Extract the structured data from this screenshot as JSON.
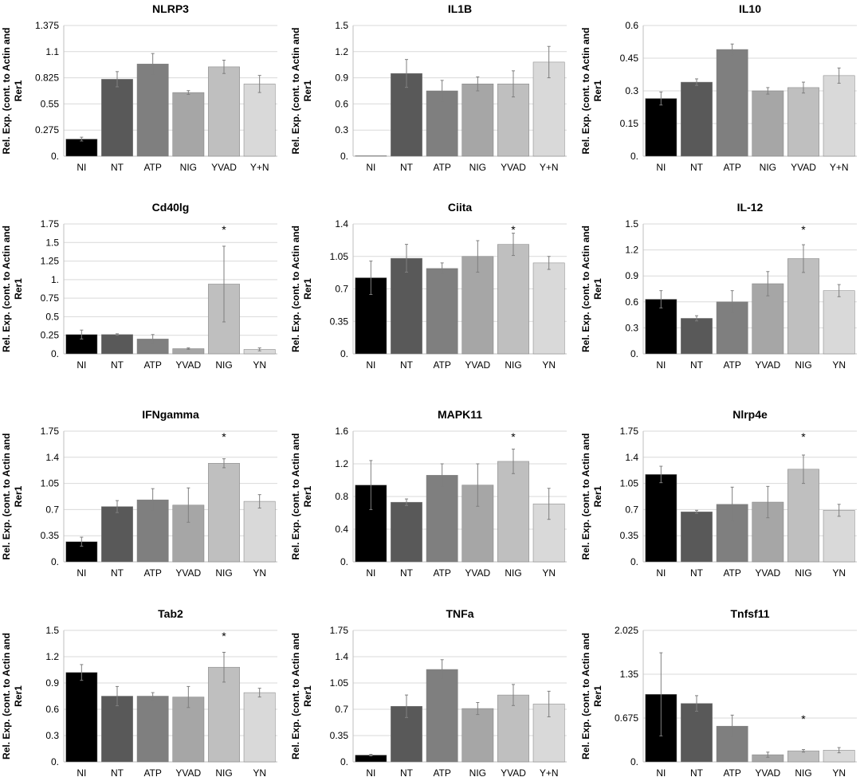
{
  "figure": {
    "chart_data": [
      {
        "type": "bar",
        "title": "NLRP3",
        "ylabel_line1": "Rel. Exp. (cont. to Actin and",
        "ylabel_line2": "Rer1",
        "categories": [
          "NI",
          "NT",
          "ATP",
          "NIG",
          "YVAD",
          "Y+N"
        ],
        "values": [
          0.18,
          0.81,
          0.97,
          0.67,
          0.94,
          0.76
        ],
        "errors": [
          0.02,
          0.08,
          0.11,
          0.02,
          0.07,
          0.09
        ],
        "colors": [
          "#000000",
          "#595959",
          "#7f7f7f",
          "#a6a6a6",
          "#bfbfbf",
          "#d9d9d9"
        ],
        "ylim": [
          0,
          1.375
        ],
        "yticks": [
          "0.",
          "0.275",
          "0.55",
          "0.825",
          "1.1",
          "1.375"
        ],
        "significance": []
      },
      {
        "type": "bar",
        "title": "IL1B",
        "ylabel_line1": "Rel. Exp. (cont. to Actin and",
        "ylabel_line2": "Rer1",
        "categories": [
          "NI",
          "NT",
          "ATP",
          "NIG",
          "YVAD",
          "Y+N"
        ],
        "values": [
          0.005,
          0.95,
          0.75,
          0.83,
          0.83,
          1.08
        ],
        "errors": [
          0,
          0.16,
          0.12,
          0.08,
          0.15,
          0.18
        ],
        "colors": [
          "#000000",
          "#595959",
          "#7f7f7f",
          "#a6a6a6",
          "#bfbfbf",
          "#d9d9d9"
        ],
        "ylim": [
          0,
          1.5
        ],
        "yticks": [
          "0.",
          "0.3",
          "0.6",
          "0.9",
          "1.2",
          "1.5"
        ],
        "significance": []
      },
      {
        "type": "bar",
        "title": "IL10",
        "ylabel_line1": "Rel. Exp. (cont. to Actin and",
        "ylabel_line2": "Rer1",
        "categories": [
          "NI",
          "NT",
          "ATP",
          "NIG",
          "YVAD",
          "Y+N"
        ],
        "values": [
          0.265,
          0.34,
          0.49,
          0.3,
          0.315,
          0.37
        ],
        "errors": [
          0.03,
          0.015,
          0.025,
          0.015,
          0.025,
          0.035
        ],
        "colors": [
          "#000000",
          "#595959",
          "#7f7f7f",
          "#a6a6a6",
          "#bfbfbf",
          "#d9d9d9"
        ],
        "ylim": [
          0,
          0.6
        ],
        "yticks": [
          "0.",
          "0.15",
          "0.3",
          "0.45",
          "0.6"
        ],
        "significance": []
      },
      {
        "type": "bar",
        "title": "Cd40lg",
        "ylabel_line1": "Rel. Exp. (cont. to Actin and",
        "ylabel_line2": "Rer1",
        "categories": [
          "NI",
          "NT",
          "ATP",
          "YVAD",
          "NIG",
          "YN"
        ],
        "values": [
          0.26,
          0.26,
          0.2,
          0.07,
          0.94,
          0.06
        ],
        "errors": [
          0.06,
          0.01,
          0.06,
          0.01,
          0.51,
          0.02
        ],
        "colors": [
          "#000000",
          "#595959",
          "#7f7f7f",
          "#a6a6a6",
          "#bfbfbf",
          "#d9d9d9"
        ],
        "ylim": [
          0,
          1.75
        ],
        "yticks": [
          "0.",
          "0.25",
          "0.5",
          "0.75",
          "1.",
          "1.25",
          "1.5",
          "1.75"
        ],
        "significance": [
          4
        ]
      },
      {
        "type": "bar",
        "title": "Ciita",
        "ylabel_line1": "Rel. Exp. (cont. to Actin and",
        "ylabel_line2": "Rer1",
        "categories": [
          "NI",
          "NT",
          "ATP",
          "YVAD",
          "NIG",
          "YN"
        ],
        "values": [
          0.82,
          1.03,
          0.92,
          1.05,
          1.18,
          0.98
        ],
        "errors": [
          0.18,
          0.15,
          0.06,
          0.17,
          0.12,
          0.07
        ],
        "colors": [
          "#000000",
          "#595959",
          "#7f7f7f",
          "#a6a6a6",
          "#bfbfbf",
          "#d9d9d9"
        ],
        "ylim": [
          0,
          1.4
        ],
        "yticks": [
          "0.",
          "0.35",
          "0.7",
          "1.05",
          "1.4"
        ],
        "significance": [
          4
        ]
      },
      {
        "type": "bar",
        "title": "IL-12",
        "ylabel_line1": "Rel. Exp. (cont. to Actin and",
        "ylabel_line2": "Rer1",
        "categories": [
          "NI",
          "NT",
          "ATP",
          "YVAD",
          "NIG",
          "YN"
        ],
        "values": [
          0.63,
          0.41,
          0.6,
          0.81,
          1.1,
          0.73
        ],
        "errors": [
          0.1,
          0.03,
          0.13,
          0.14,
          0.16,
          0.07
        ],
        "colors": [
          "#000000",
          "#595959",
          "#7f7f7f",
          "#a6a6a6",
          "#bfbfbf",
          "#d9d9d9"
        ],
        "ylim": [
          0,
          1.5
        ],
        "yticks": [
          "0.",
          "0.3",
          "0.6",
          "0.9",
          "1.2",
          "1.5"
        ],
        "significance": [
          4
        ]
      },
      {
        "type": "bar",
        "title": "IFNgamma",
        "ylabel_line1": "Rel. Exp. (cont. to Actin and",
        "ylabel_line2": "Rer1",
        "categories": [
          "NI",
          "NT",
          "ATP",
          "YVAD",
          "NIG",
          "YN"
        ],
        "values": [
          0.27,
          0.74,
          0.83,
          0.76,
          1.32,
          0.81
        ],
        "errors": [
          0.06,
          0.08,
          0.15,
          0.23,
          0.06,
          0.09
        ],
        "colors": [
          "#000000",
          "#595959",
          "#7f7f7f",
          "#a6a6a6",
          "#bfbfbf",
          "#d9d9d9"
        ],
        "ylim": [
          0,
          1.75
        ],
        "yticks": [
          "0.",
          "0.35",
          "0.7",
          "1.05",
          "1.4",
          "1.75"
        ],
        "significance": [
          4
        ]
      },
      {
        "type": "bar",
        "title": "MAPK11",
        "ylabel_line1": "Rel. Exp. (cont. to Actin and",
        "ylabel_line2": "Rer1",
        "categories": [
          "NI",
          "NT",
          "ATP",
          "YVAD",
          "NIG",
          "YN"
        ],
        "values": [
          0.94,
          0.73,
          1.06,
          0.94,
          1.23,
          0.71
        ],
        "errors": [
          0.3,
          0.04,
          0.14,
          0.26,
          0.15,
          0.19
        ],
        "colors": [
          "#000000",
          "#595959",
          "#7f7f7f",
          "#a6a6a6",
          "#bfbfbf",
          "#d9d9d9"
        ],
        "ylim": [
          0,
          1.6
        ],
        "yticks": [
          "0.",
          "0.4",
          "0.8",
          "1.2",
          "1.6"
        ],
        "significance": [
          4
        ]
      },
      {
        "type": "bar",
        "title": "Nlrp4e",
        "ylabel_line1": "Rel. Exp. (cont. to Actin and",
        "ylabel_line2": "Rer1",
        "categories": [
          "NI",
          "NT",
          "ATP",
          "YVAD",
          "NIG",
          "YN"
        ],
        "values": [
          1.17,
          0.67,
          0.77,
          0.8,
          1.24,
          0.69
        ],
        "errors": [
          0.11,
          0.02,
          0.23,
          0.21,
          0.19,
          0.08
        ],
        "colors": [
          "#000000",
          "#595959",
          "#7f7f7f",
          "#a6a6a6",
          "#bfbfbf",
          "#d9d9d9"
        ],
        "ylim": [
          0,
          1.75
        ],
        "yticks": [
          "0.",
          "0.35",
          "0.7",
          "1.05",
          "1.4",
          "1.75"
        ],
        "significance": [
          4
        ]
      },
      {
        "type": "bar",
        "title": "Tab2",
        "ylabel_line1": "Rel. Exp. (cont. to Actin and",
        "ylabel_line2": "Rer1",
        "categories": [
          "NI",
          "NT",
          "ATP",
          "YVAD",
          "NIG",
          "YN"
        ],
        "values": [
          1.02,
          0.75,
          0.75,
          0.74,
          1.08,
          0.79
        ],
        "errors": [
          0.09,
          0.11,
          0.04,
          0.12,
          0.17,
          0.05
        ],
        "colors": [
          "#000000",
          "#595959",
          "#7f7f7f",
          "#a6a6a6",
          "#bfbfbf",
          "#d9d9d9"
        ],
        "ylim": [
          0,
          1.5
        ],
        "yticks": [
          "0.",
          "0.3",
          "0.6",
          "0.9",
          "1.2",
          "1.5"
        ],
        "significance": [
          4
        ]
      },
      {
        "type": "bar",
        "title": "TNFa",
        "ylabel_line1": "Rel. Exp. (cont. to Actin and",
        "ylabel_line2": "Rer1",
        "categories": [
          "NI",
          "NT",
          "ATP",
          "NIG",
          "YVAD",
          "Y+N"
        ],
        "values": [
          0.09,
          0.74,
          1.23,
          0.71,
          0.89,
          0.77
        ],
        "errors": [
          0.01,
          0.15,
          0.13,
          0.08,
          0.14,
          0.17
        ],
        "colors": [
          "#000000",
          "#595959",
          "#7f7f7f",
          "#a6a6a6",
          "#bfbfbf",
          "#d9d9d9"
        ],
        "ylim": [
          0,
          1.75
        ],
        "yticks": [
          "0.",
          "0.35",
          "0.7",
          "1.05",
          "1.4",
          "1.75"
        ],
        "significance": []
      },
      {
        "type": "bar",
        "title": "Tnfsf11",
        "ylabel_line1": "Rel. Exp. (cont. to Actin and",
        "ylabel_line2": "Rer1",
        "categories": [
          "NI",
          "NT",
          "ATP",
          "YVAD",
          "NIG",
          "YN"
        ],
        "values": [
          1.04,
          0.9,
          0.55,
          0.11,
          0.17,
          0.18
        ],
        "errors": [
          0.64,
          0.12,
          0.17,
          0.04,
          0.02,
          0.04
        ],
        "colors": [
          "#000000",
          "#595959",
          "#7f7f7f",
          "#a6a6a6",
          "#bfbfbf",
          "#d9d9d9"
        ],
        "ylim": [
          0,
          2.025
        ],
        "yticks": [
          "0.",
          "0.675",
          "1.35",
          "2.025"
        ],
        "significance": [
          4
        ]
      }
    ]
  }
}
